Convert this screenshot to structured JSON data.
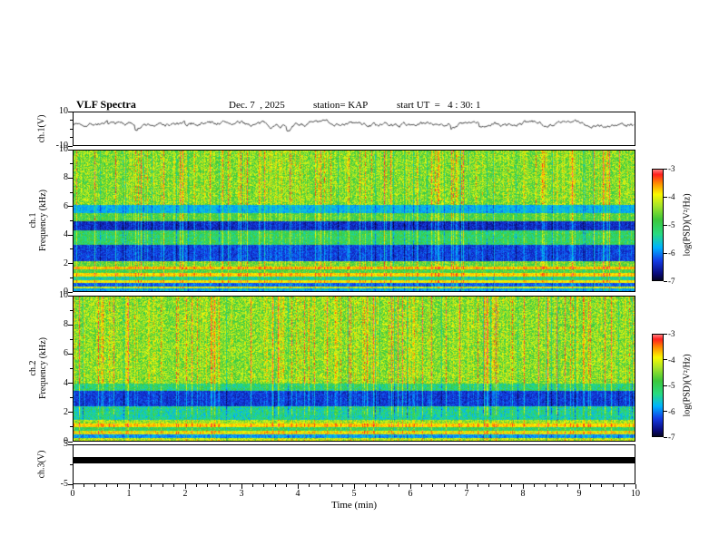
{
  "header": {
    "title": "VLF Spectra",
    "date": "Dec. 7  , 2025",
    "station": "station= KAP",
    "start_ut": "start UT  =   4 : 30: 1"
  },
  "xaxis": {
    "label": "Time (min)",
    "range": [
      0,
      10
    ],
    "ticks": [
      0,
      1,
      2,
      3,
      4,
      5,
      6,
      7,
      8,
      9,
      10
    ]
  },
  "colorbar": {
    "label": "log(PSD)(V²/Hz)",
    "ticks": [
      -3,
      -4,
      -5,
      -6,
      -7
    ],
    "range": [
      -7,
      -3
    ]
  },
  "chart_data": [
    {
      "type": "line",
      "name": "ch1-voltage-waveform",
      "ylabel": "ch.1(V)",
      "ylim": [
        -10,
        10
      ],
      "yticks": [
        10,
        -10
      ],
      "mean": 3.0,
      "step": 1.9,
      "seed": 7,
      "description": "dense black noise waveform oscillating around +3 V, excursions roughly 0 to 6 V"
    },
    {
      "type": "heatmap",
      "name": "ch1-spectrogram",
      "channel": "ch.1",
      "ylabel": "Frequency (kHz)",
      "xlim": [
        0,
        10
      ],
      "ylim": [
        0,
        10
      ],
      "yticks": [
        10,
        8,
        6,
        4,
        2,
        0
      ],
      "zlim": [
        -7,
        -3
      ],
      "base_psd": -4.6,
      "noise": 0.9,
      "seed": 11,
      "bands": [
        {
          "f": [
            6.15,
            10.05
          ],
          "psd": -4.6,
          "noise": 1.15
        },
        {
          "f": [
            5.55,
            6.15
          ],
          "psd": -5.85,
          "noise": 0.5
        },
        {
          "f": [
            5.0,
            5.55
          ],
          "psd": -4.9
        },
        {
          "f": [
            4.35,
            5.0
          ],
          "psd": -6.5,
          "noise": 0.5
        },
        {
          "f": [
            3.3,
            4.35
          ],
          "psd": -5.2
        },
        {
          "f": [
            2.15,
            3.3
          ],
          "psd": -6.35,
          "noise": 0.5
        },
        {
          "f": [
            1.75,
            2.15
          ],
          "psd": -4.7
        },
        {
          "f": [
            1.55,
            1.75
          ],
          "psd": -3.7,
          "noise": 0.4
        },
        {
          "f": [
            1.3,
            1.55
          ],
          "psd": -4.9
        },
        {
          "f": [
            1.05,
            1.3
          ],
          "psd": -3.8,
          "noise": 0.4
        },
        {
          "f": [
            0.8,
            1.05
          ],
          "psd": -5.4
        },
        {
          "f": [
            0.6,
            0.8
          ],
          "psd": -3.9,
          "noise": 0.4
        },
        {
          "f": [
            0.35,
            0.6
          ],
          "psd": -6.2,
          "noise": 0.5
        },
        {
          "f": [
            0.2,
            0.35
          ],
          "psd": -4.2
        },
        {
          "f": [
            0.0,
            0.2
          ],
          "psd": -5.9,
          "noise": 0.5
        }
      ],
      "description": "green/yellow background with red vertical impulsive streaks, dark blue horizontal bands near 2.2-3.3 kHz and 4.4-5 kHz, striped red/green lines below 1.8 kHz"
    },
    {
      "type": "heatmap",
      "name": "ch2-spectrogram",
      "channel": "ch.2",
      "ylabel": "Frequency (kHz)",
      "xlim": [
        0,
        10
      ],
      "ylim": [
        0,
        10
      ],
      "yticks": [
        10,
        8,
        6,
        4,
        2,
        0
      ],
      "zlim": [
        -7,
        -3
      ],
      "base_psd": -4.55,
      "noise": 0.9,
      "seed": 23,
      "bands": [
        {
          "f": [
            4.0,
            10.05
          ],
          "psd": -4.55,
          "noise": 1.15
        },
        {
          "f": [
            3.5,
            4.0
          ],
          "psd": -5.3
        },
        {
          "f": [
            2.4,
            3.5
          ],
          "psd": -6.4,
          "noise": 0.5
        },
        {
          "f": [
            1.5,
            2.4
          ],
          "psd": -5.5
        },
        {
          "f": [
            1.2,
            1.5
          ],
          "psd": -4.4
        },
        {
          "f": [
            0.95,
            1.2
          ],
          "psd": -3.8,
          "noise": 0.4
        },
        {
          "f": [
            0.7,
            0.95
          ],
          "psd": -5.1
        },
        {
          "f": [
            0.45,
            0.7
          ],
          "psd": -4.0
        },
        {
          "f": [
            0.2,
            0.45
          ],
          "psd": -6.0,
          "noise": 0.5
        },
        {
          "f": [
            0.0,
            0.2
          ],
          "psd": -4.3
        }
      ],
      "description": "green/yellow background with red vertical impulsive streaks, dark blue horizontal band near 2.4-3.5 kHz, striped lines below 1.5 kHz"
    },
    {
      "type": "band",
      "name": "ch3-signal",
      "ylabel": "ch.3(V)",
      "ylim": [
        -5,
        5
      ],
      "yticks": [
        5,
        -5
      ],
      "band": [
        0.3,
        1.9
      ],
      "color": "#000000",
      "description": "flat solid black bar spanning the full 0-10 min range just above 0 V"
    }
  ]
}
